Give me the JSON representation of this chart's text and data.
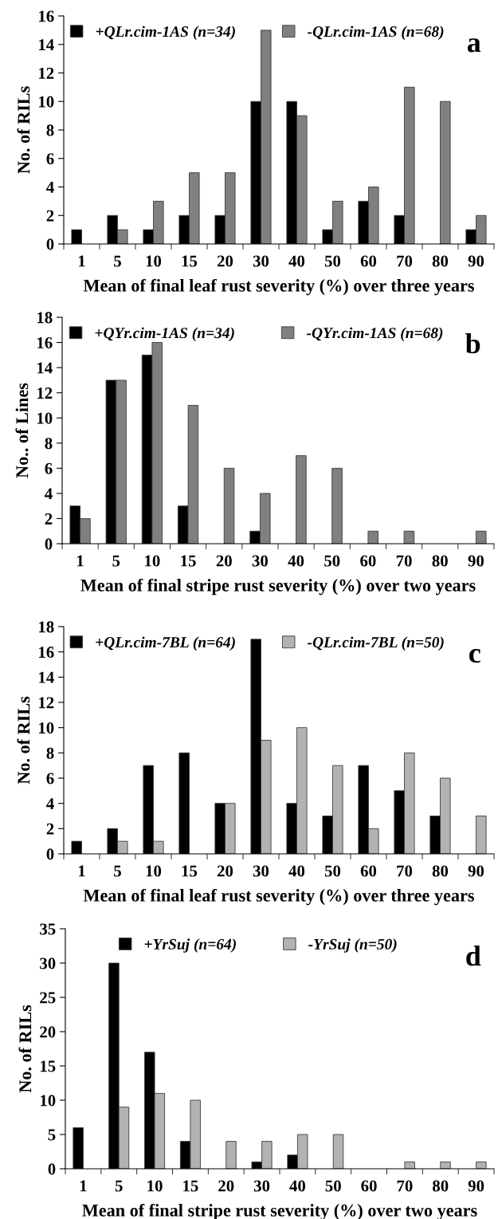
{
  "chart_data": [
    {
      "type": "bar",
      "xlabel": "Mean of final leaf rust severity (%) over three years",
      "ylabel": "No. of RILs",
      "annotations": [
        "a"
      ],
      "categories": [
        "1",
        "5",
        "10",
        "15",
        "20",
        "30",
        "40",
        "50",
        "60",
        "70",
        "80",
        "90"
      ],
      "ylim": [
        0,
        16
      ],
      "yticks": [
        0,
        2,
        4,
        6,
        8,
        10,
        12,
        14,
        16
      ],
      "legend": "top",
      "grid": false,
      "series": [
        {
          "name": "+QLr.cim-1AS (n=34)",
          "color": "#000000",
          "values": [
            1,
            2,
            1,
            2,
            2,
            10,
            10,
            1,
            3,
            2,
            0,
            1
          ]
        },
        {
          "name": "-QLr.cim-1AS (n=68)",
          "color": "#808080",
          "values": [
            0,
            1,
            3,
            5,
            5,
            15,
            9,
            3,
            4,
            11,
            10,
            2
          ]
        }
      ]
    },
    {
      "type": "bar",
      "xlabel": "Mean of final stripe rust severity (%) over two years",
      "ylabel": "No.. of Lines",
      "annotations": [
        "b"
      ],
      "categories": [
        "1",
        "5",
        "10",
        "15",
        "20",
        "30",
        "40",
        "50",
        "60",
        "70",
        "80",
        "90"
      ],
      "ylim": [
        0,
        18
      ],
      "yticks": [
        0,
        2,
        4,
        6,
        8,
        10,
        12,
        14,
        16,
        18
      ],
      "legend": "top",
      "grid": false,
      "series": [
        {
          "name": "+QYr.cim-1AS (n=34)",
          "color": "#000000",
          "values": [
            3,
            13,
            15,
            3,
            0,
            1,
            0,
            0,
            0,
            0,
            0,
            0
          ]
        },
        {
          "name": "-QYr.cim-1AS (n=68)",
          "color": "#808080",
          "values": [
            2,
            13,
            16,
            11,
            6,
            4,
            7,
            6,
            1,
            1,
            0,
            1
          ]
        }
      ]
    },
    {
      "type": "bar",
      "xlabel": "Mean of final leaf rust severity (%) over three years",
      "ylabel": "No. of RILs",
      "annotations": [
        "c"
      ],
      "categories": [
        "1",
        "5",
        "10",
        "15",
        "20",
        "30",
        "40",
        "50",
        "60",
        "70",
        "80",
        "90"
      ],
      "ylim": [
        0,
        18
      ],
      "yticks": [
        0,
        2,
        4,
        6,
        8,
        10,
        12,
        14,
        16,
        18
      ],
      "legend": "top",
      "grid": false,
      "series": [
        {
          "name": "+QLr.cim-7BL (n=64)",
          "color": "#000000",
          "values": [
            1,
            2,
            7,
            8,
            4,
            17,
            4,
            3,
            7,
            5,
            3,
            0
          ]
        },
        {
          "name": "-QLr.cim-7BL (n=50)",
          "color": "#b2b2b2",
          "values": [
            0,
            1,
            1,
            0,
            4,
            9,
            10,
            7,
            2,
            8,
            6,
            3
          ]
        }
      ]
    },
    {
      "type": "bar",
      "xlabel": "Mean of final stripe rust severity (%) over two years",
      "ylabel": "No. of RILs",
      "annotations": [
        "d"
      ],
      "categories": [
        "1",
        "5",
        "10",
        "15",
        "20",
        "30",
        "40",
        "50",
        "60",
        "70",
        "80",
        "90"
      ],
      "ylim": [
        0,
        35
      ],
      "yticks": [
        0,
        5,
        10,
        15,
        20,
        25,
        30,
        35
      ],
      "legend": "top",
      "grid": false,
      "series": [
        {
          "name": "+YrSuj (n=64)",
          "color": "#000000",
          "values": [
            6,
            30,
            17,
            4,
            0,
            1,
            2,
            0,
            0,
            0,
            0,
            0
          ]
        },
        {
          "name": "-YrSuj (n=50)",
          "color": "#b2b2b2",
          "values": [
            0,
            9,
            11,
            10,
            4,
            4,
            5,
            5,
            0,
            1,
            1,
            1
          ]
        }
      ]
    }
  ]
}
